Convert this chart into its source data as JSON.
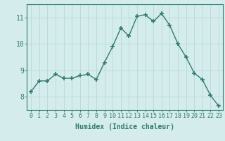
{
  "x": [
    0,
    1,
    2,
    3,
    4,
    5,
    6,
    7,
    8,
    9,
    10,
    11,
    12,
    13,
    14,
    15,
    16,
    17,
    18,
    19,
    20,
    21,
    22,
    23
  ],
  "y": [
    8.2,
    8.6,
    8.6,
    8.85,
    8.7,
    8.7,
    8.8,
    8.85,
    8.65,
    9.3,
    9.9,
    10.6,
    10.3,
    11.05,
    11.1,
    10.85,
    11.15,
    10.7,
    10.0,
    9.5,
    8.9,
    8.65,
    8.05,
    7.65
  ],
  "xlabel": "Humidex (Indice chaleur)",
  "ylim": [
    7.5,
    11.5
  ],
  "yticks": [
    8,
    9,
    10,
    11
  ],
  "xticks": [
    0,
    1,
    2,
    3,
    4,
    5,
    6,
    7,
    8,
    9,
    10,
    11,
    12,
    13,
    14,
    15,
    16,
    17,
    18,
    19,
    20,
    21,
    22,
    23
  ],
  "line_color": "#2e7d6e",
  "marker": "+",
  "marker_size": 4,
  "bg_color": "#d4ecec",
  "grid_color": "#b8d8d8",
  "axis_color": "#2e7d6e",
  "xlabel_fontsize": 7,
  "tick_fontsize": 6,
  "ytick_fontsize": 7
}
